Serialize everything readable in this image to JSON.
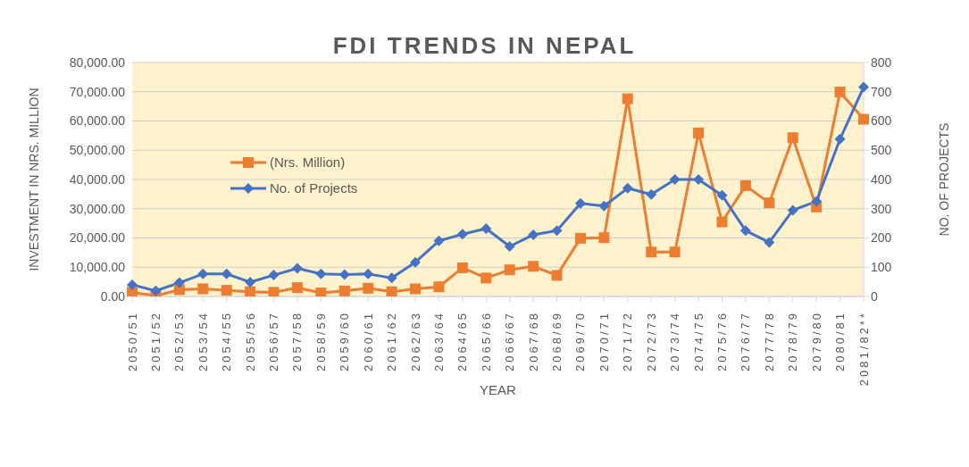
{
  "chart_data": {
    "type": "line",
    "title": "FDI TRENDS IN NEPAL",
    "xlabel": "YEAR",
    "ylabel": "INVESTMENT IN NRS. MILLION",
    "y2label": "NO. OF PROJECTS",
    "categories": [
      "2050/51",
      "2051/52",
      "2052/53",
      "2053/54",
      "2054/55",
      "2055/56",
      "2056/57",
      "2057/58",
      "2058/59",
      "2059/60",
      "2060/61",
      "2061/62",
      "2062/63",
      "2063/64",
      "2064/65",
      "2065/66",
      "2066/67",
      "2067/68",
      "2068/69",
      "2069/70",
      "2070/71",
      "2071/72",
      "2072/73",
      "2073/74",
      "2074/75",
      "2075/76",
      "2076/77",
      "2077/78",
      "2078/79",
      "2079/80",
      "2080/81",
      "2081/82**"
    ],
    "series": [
      {
        "name": "(Nrs. Million)",
        "color": "#ed7d31",
        "marker": "square",
        "values": [
          1400,
          200,
          2300,
          2600,
          2100,
          1600,
          1400,
          3000,
          1200,
          1900,
          2800,
          1600,
          2600,
          3300,
          9800,
          6300,
          9100,
          10300,
          7200,
          19900,
          20100,
          67600,
          15200,
          15200,
          55900,
          25500,
          37900,
          32000,
          54300,
          30600,
          69900,
          60600
        ]
      },
      {
        "name": "No. of Projects",
        "color": "#4472c4",
        "marker": "diamond",
        "axis": "y2",
        "values": [
          40,
          19,
          47,
          77,
          77,
          49,
          73,
          96,
          77,
          75,
          77,
          63,
          117,
          190,
          213,
          232,
          171,
          211,
          225,
          318,
          309,
          370,
          349,
          400,
          400,
          346,
          225,
          185,
          295,
          325,
          538,
          716
        ]
      }
    ],
    "ylim": [
      0,
      80000
    ],
    "yticks": [
      {
        "value": 0,
        "label": "0.00"
      },
      {
        "value": 10000,
        "label": "10,000.00"
      },
      {
        "value": 20000,
        "label": "20,000.00"
      },
      {
        "value": 30000,
        "label": "30,000.00"
      },
      {
        "value": 40000,
        "label": "40,000.00"
      },
      {
        "value": 50000,
        "label": "50,000.00"
      },
      {
        "value": 60000,
        "label": "60,000.00"
      },
      {
        "value": 70000,
        "label": "70,000.00"
      },
      {
        "value": 80000,
        "label": "80,000.00"
      }
    ],
    "y2lim": [
      0,
      800
    ],
    "y2ticks": [
      0,
      100,
      200,
      300,
      400,
      500,
      600,
      700,
      800
    ],
    "grid": "y",
    "legend": "left",
    "line_style": "solid"
  }
}
